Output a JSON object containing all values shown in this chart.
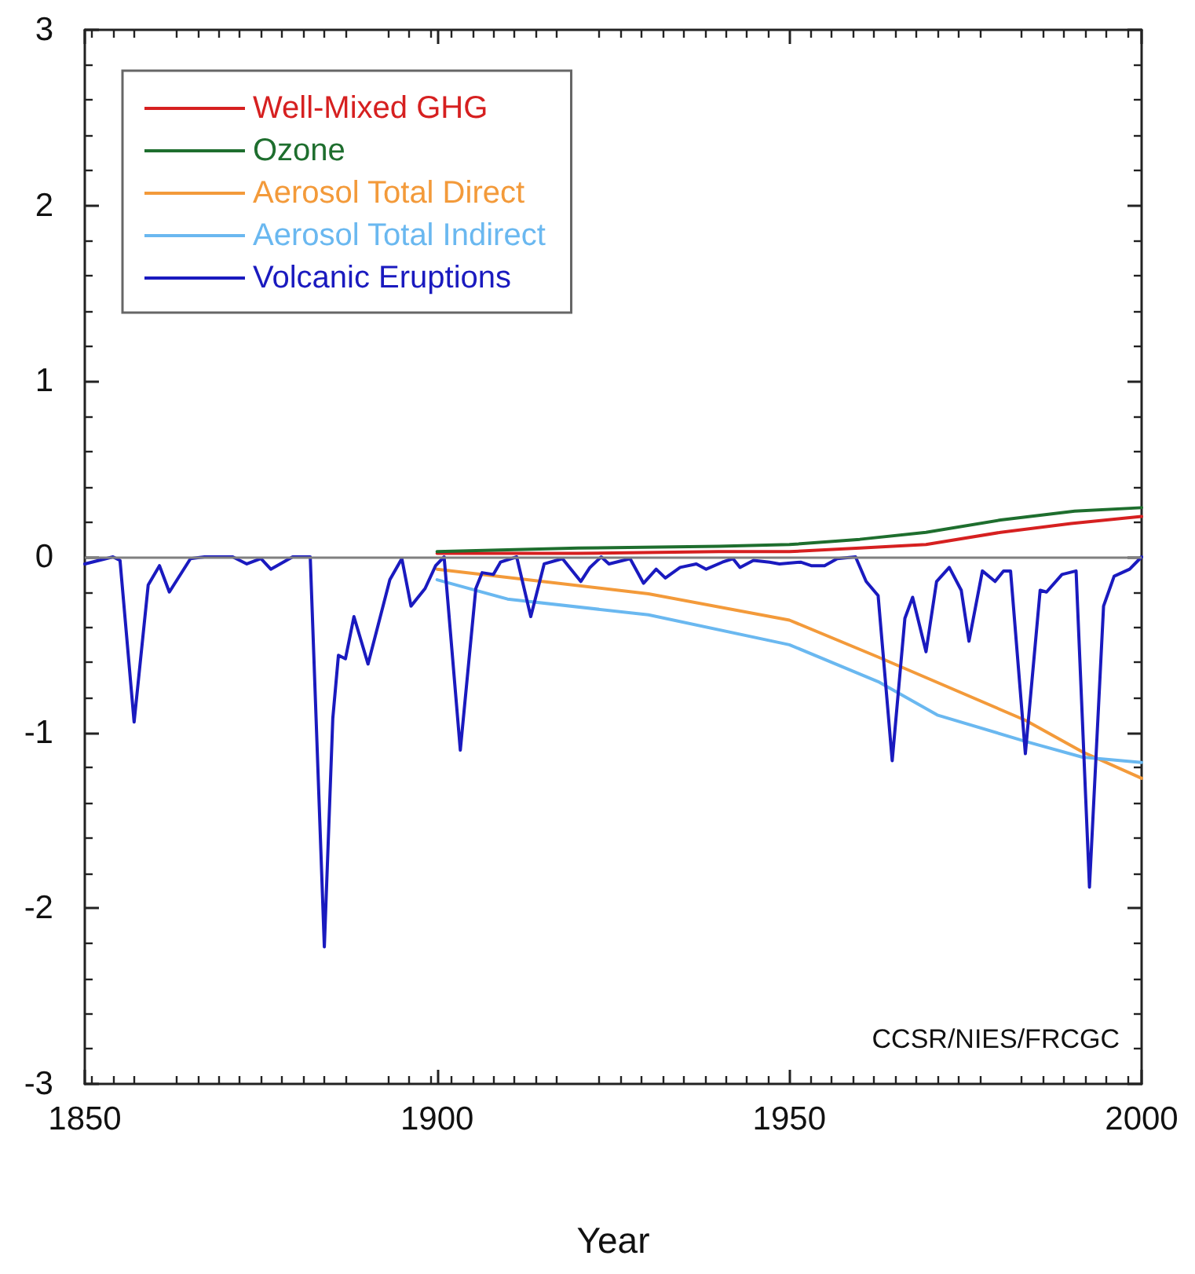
{
  "chart_data": {
    "type": "line",
    "xlabel": "Year",
    "xlim": [
      1850,
      2000
    ],
    "xticks": [
      1850,
      1900,
      1950,
      2000
    ],
    "ylim": [
      -3,
      3
    ],
    "yticks": [
      -3,
      -2,
      -1,
      0,
      1,
      2,
      3
    ],
    "grid": false,
    "legend": "top left",
    "marker": "none",
    "line_style": "solid",
    "annotations": [
      "CCSR/NIES/FRCGC"
    ],
    "ref_lines": [
      {
        "axis": "y",
        "value": 0,
        "color": "#808080"
      }
    ],
    "series": [
      {
        "name": "Well-Mixed GHG",
        "color": "#d62020",
        "x": [
          1900,
          1920,
          1940,
          1950,
          1960,
          1969.4,
          1980,
          1990,
          2000
        ],
        "values": [
          0.02,
          0.02,
          0.03,
          0.03,
          0.05,
          0.07,
          0.14,
          0.19,
          0.23
        ]
      },
      {
        "name": "Ozone",
        "color": "#1e6e2e",
        "x": [
          1900,
          1920,
          1940,
          1950,
          1960,
          1969.4,
          1980,
          1990.5,
          2000
        ],
        "values": [
          0.03,
          0.05,
          0.06,
          0.07,
          0.1,
          0.14,
          0.21,
          0.26,
          0.28
        ]
      },
      {
        "name": "Aerosol Total Direct",
        "color": "#f39a3a",
        "x": [
          1900,
          1930,
          1950,
          1962.6,
          1983.5,
          1991.6,
          2000
        ],
        "values": [
          -0.07,
          -0.21,
          -0.36,
          -0.57,
          -0.93,
          -1.11,
          -1.26
        ]
      },
      {
        "name": "Aerosol Total Indirect",
        "color": "#6ab8f0",
        "x": [
          1900,
          1910,
          1930,
          1950,
          1962.6,
          1971,
          1983.5,
          1991.6,
          2000
        ],
        "values": [
          -0.13,
          -0.24,
          -0.33,
          -0.5,
          -0.71,
          -0.9,
          -1.05,
          -1.14,
          -1.17
        ]
      },
      {
        "name": "Volcanic Eruptions",
        "color": "#1a1abf",
        "x": [
          1850,
          1854,
          1855,
          1857,
          1859,
          1860.6,
          1862,
          1865,
          1867,
          1871,
          1873,
          1875,
          1876.4,
          1879.5,
          1882,
          1884,
          1885.2,
          1886,
          1887,
          1888.2,
          1890.2,
          1893.3,
          1895,
          1896.3,
          1898.3,
          1899.8,
          1901,
          1903.3,
          1905.5,
          1906.4,
          1908,
          1909,
          1911.3,
          1913.3,
          1915.2,
          1917.8,
          1920.4,
          1921.7,
          1923.3,
          1924.4,
          1927.4,
          1929.3,
          1931.1,
          1932.4,
          1934.5,
          1936.8,
          1938.2,
          1940.5,
          1942,
          1943,
          1944.9,
          1947.2,
          1948.6,
          1951.6,
          1953.1,
          1955,
          1956.8,
          1959.4,
          1960.9,
          1962.6,
          1964.6,
          1966.4,
          1967.5,
          1969.4,
          1970.9,
          1972.7,
          1974.4,
          1975.5,
          1977.4,
          1979.2,
          1980.4,
          1981.4,
          1983.5,
          1985.6,
          1986.5,
          1988.7,
          1990.7,
          1992.6,
          1994.6,
          1996.1,
          1998.3,
          2000
        ],
        "values": [
          -0.04,
          0,
          -0.02,
          -0.94,
          -0.16,
          -0.05,
          -0.2,
          -0.01,
          0,
          0,
          -0.04,
          -0.01,
          -0.07,
          0,
          0,
          -2.22,
          -0.92,
          -0.56,
          -0.58,
          -0.34,
          -0.61,
          -0.13,
          -0.01,
          -0.28,
          -0.18,
          -0.05,
          0,
          -1.1,
          -0.18,
          -0.09,
          -0.1,
          -0.03,
          0,
          -0.34,
          -0.04,
          -0.01,
          -0.14,
          -0.06,
          0,
          -0.04,
          -0.01,
          -0.15,
          -0.07,
          -0.12,
          -0.06,
          -0.04,
          -0.07,
          -0.03,
          -0.01,
          -0.06,
          -0.02,
          -0.03,
          -0.04,
          -0.03,
          -0.05,
          -0.05,
          -0.01,
          0,
          -0.14,
          -0.22,
          -1.16,
          -0.35,
          -0.23,
          -0.54,
          -0.14,
          -0.06,
          -0.19,
          -0.48,
          -0.08,
          -0.14,
          -0.08,
          -0.08,
          -1.12,
          -0.19,
          -0.2,
          -0.1,
          -0.08,
          -1.88,
          -0.28,
          -0.11,
          -0.07,
          0
        ]
      }
    ]
  }
}
